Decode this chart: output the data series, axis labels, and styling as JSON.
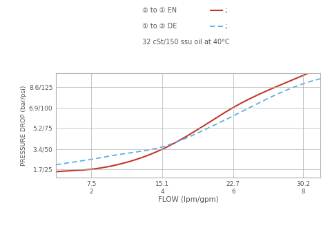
{
  "ylabel": "PRESSURE DROP (bar/psi)",
  "xlabel": "FLOW (lpm/gpm)",
  "x_ticks": [
    7.5,
    15.1,
    22.7,
    30.2
  ],
  "x_tick_labels_top": [
    "7.5",
    "15.1",
    "22.7",
    "30.2"
  ],
  "x_tick_labels_bot": [
    "2",
    "4",
    "6",
    "8"
  ],
  "y_ticks": [
    1.7,
    3.4,
    5.2,
    6.9,
    8.6
  ],
  "y_tick_labels": [
    "1.7/25",
    "3.4/50",
    "5.2/75",
    "6.9/100",
    "8.6/125"
  ],
  "xlim": [
    3.75,
    32.0
  ],
  "ylim": [
    1.0,
    9.8
  ],
  "en_x": [
    3.75,
    5.0,
    7.5,
    10.0,
    15.1,
    19.0,
    22.7,
    26.0,
    30.2
  ],
  "en_y": [
    1.52,
    1.58,
    1.72,
    2.05,
    3.4,
    5.1,
    6.9,
    8.2,
    9.6
  ],
  "de_x": [
    3.75,
    5.0,
    7.5,
    10.0,
    15.1,
    19.0,
    22.7,
    26.0,
    30.2
  ],
  "de_y": [
    2.1,
    2.25,
    2.55,
    2.9,
    3.6,
    4.8,
    6.2,
    7.5,
    8.9
  ],
  "en_color": "#c0392b",
  "de_color": "#5dade2",
  "bg_color": "#ffffff",
  "grid_color": "#b0b0b0",
  "font_color": "#555555",
  "legend_line1": "② to ① EN",
  "legend_line2": "① to ② DE",
  "legend_line3": "32 cSt/150 ssu oil at 40°C"
}
